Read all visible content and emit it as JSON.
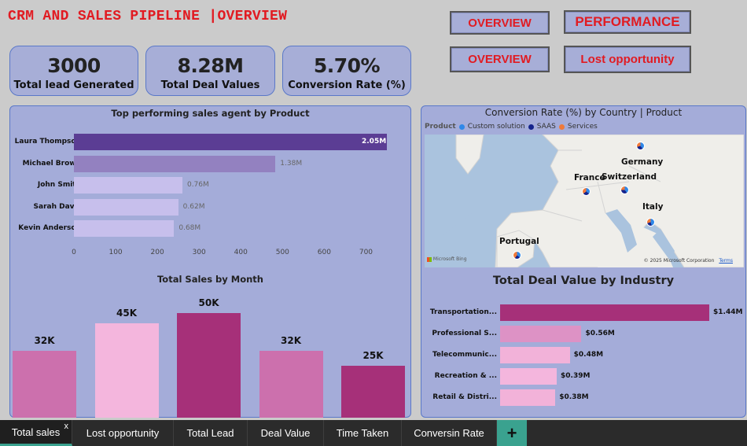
{
  "header": {
    "title": "CRM AND SALES PIPELINE |OVERVIEW"
  },
  "nav": {
    "overview1": "OVERVIEW",
    "performance": "PERFORMANCE",
    "overview2": "OVERVIEW",
    "lost": "Lost opportunity"
  },
  "kpis": [
    {
      "value": "3000",
      "label": "Total lead Generated"
    },
    {
      "value": "8.28M",
      "label": "Total Deal Values"
    },
    {
      "value": "5.70%",
      "label": "Conversion Rate (%)"
    }
  ],
  "agents_chart": {
    "title": "Top performing sales agent by Product",
    "ticks": [
      "0",
      "100",
      "200",
      "300",
      "400",
      "500",
      "600",
      "700"
    ],
    "rows": [
      {
        "name": "Laura Thompson",
        "label": "2.05M",
        "length": 750,
        "color": "#5b3d94"
      },
      {
        "name": "Michael Brown",
        "label": "1.38M",
        "length": 483,
        "color": "#9381c0"
      },
      {
        "name": "John Smith",
        "label": "0.76M",
        "length": 260,
        "color": "#c7bfec"
      },
      {
        "name": "Sarah Davis",
        "label": "0.62M",
        "length": 250,
        "color": "#c7bfec"
      },
      {
        "name": "Kevin Anderson",
        "label": "0.68M",
        "length": 240,
        "color": "#c7bfec"
      }
    ]
  },
  "month_chart": {
    "title": "Total Sales by Month",
    "bars": [
      {
        "label": "32K",
        "value": 32,
        "color": "#cc70ad"
      },
      {
        "label": "45K",
        "value": 45,
        "color": "#f4b6dd"
      },
      {
        "label": "50K",
        "value": 50,
        "color": "#a63079"
      },
      {
        "label": "32K",
        "value": 32,
        "color": "#cc70ad"
      },
      {
        "label": "25K",
        "value": 25,
        "color": "#a63079"
      }
    ]
  },
  "map_panel": {
    "title": "Conversion Rate (%) by Country | Product",
    "legend_title": "Product",
    "legend": [
      {
        "name": "Custom solution",
        "color": "#2f88e8"
      },
      {
        "name": "SAAS",
        "color": "#14238c"
      },
      {
        "name": "Services",
        "color": "#f07a3a"
      }
    ],
    "countries": [
      "Germany",
      "France",
      "Switzerland",
      "Italy",
      "Portugal"
    ],
    "attribution": "© 2025 Microsoft Corporation",
    "terms": "Terms",
    "bing": "Microsoft Bing"
  },
  "industry_chart": {
    "title": "Total Deal Value by Industry",
    "rows": [
      {
        "name": "Transportation...",
        "label": "$1.44M",
        "value": 1.44,
        "color": "#a63079"
      },
      {
        "name": "Professional S...",
        "label": "$0.56M",
        "value": 0.56,
        "color": "#dd92c5"
      },
      {
        "name": "Telecommunic...",
        "label": "$0.48M",
        "value": 0.48,
        "color": "#f2b2d9"
      },
      {
        "name": "Recreation & ...",
        "label": "$0.39M",
        "value": 0.39,
        "color": "#f4b6dd"
      },
      {
        "name": "Retail & Distri...",
        "label": "$0.38M",
        "value": 0.38,
        "color": "#f2b2d9"
      }
    ]
  },
  "tabs": [
    "Total sales",
    "Lost opportunity",
    "Total Lead",
    "Deal Value",
    "Time Taken",
    "Conversin Rate"
  ],
  "tab_close": "x",
  "tab_add": "+"
}
